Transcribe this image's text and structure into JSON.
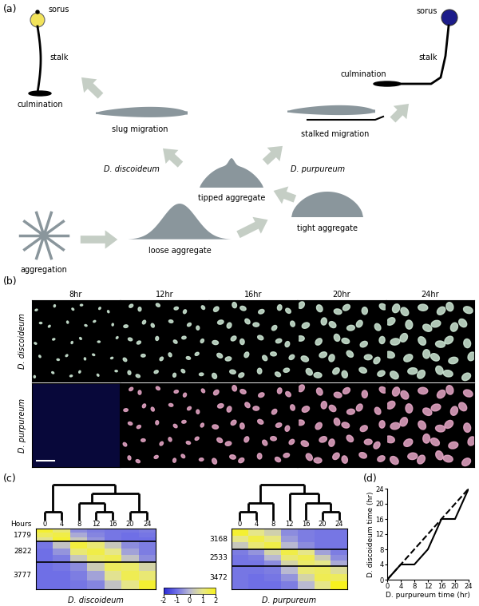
{
  "figure": {
    "panel_a": {
      "label": "(a)",
      "stages": {
        "aggregation": "aggregation",
        "loose": "loose aggregate",
        "tight": "tight aggregate",
        "tipped": "tipped aggregate"
      },
      "branches": [
        {
          "species": "D. discoideum",
          "migration": "slug migration",
          "culmination": "culmination",
          "sorus": "sorus",
          "stalk": "stalk",
          "color": "#f2e35a"
        },
        {
          "species": "D. purpureum",
          "migration": "stalked migration",
          "culmination": "culmination",
          "sorus": "sorus",
          "stalk": "stalk",
          "color": "#1c1c8a"
        }
      ]
    },
    "panel_b": {
      "label": "(b)",
      "columns": [
        "8hr",
        "12hr",
        "16hr",
        "20hr",
        "24hr"
      ],
      "rows": [
        "D. discoideum",
        "D. purpureum"
      ]
    },
    "panel_c": {
      "label": "(c)",
      "hours_label": "Hours",
      "colorbar": {
        "range": [
          -2,
          2
        ],
        "ticks": [
          -2,
          -1,
          0,
          1,
          2
        ]
      },
      "heatmaps": [
        {
          "title": "D. discoideum",
          "hours": [
            0,
            4,
            8,
            12,
            16,
            20,
            24
          ],
          "dendrogram": [
            [
              0,
              4
            ],
            [
              [
                8,
                [
                  12,
                  16
                ]
              ],
              [
                20,
                24
              ]
            ]
          ],
          "cluster_sizes": [
            1779,
            2822,
            3777
          ],
          "cells": [
            [
              [
                1.8,
                1.2,
                -0.6,
                -0.8,
                -0.9,
                -0.9,
                -0.8
              ],
              [
                1.4,
                1.6,
                -0.2,
                -0.7,
                -0.9,
                -1.0,
                -0.9
              ],
              [
                0.9,
                1.8,
                0.3,
                -0.5,
                -0.9,
                -1.0,
                -1.0
              ]
            ],
            [
              [
                -0.9,
                0.2,
                1.7,
                1.2,
                0.3,
                -0.6,
                -0.8
              ],
              [
                -1.0,
                -0.5,
                1.2,
                1.6,
                1.0,
                -0.3,
                -0.8
              ],
              [
                -1.0,
                -0.8,
                0.3,
                1.3,
                1.5,
                0.2,
                -0.6
              ]
            ],
            [
              [
                -1.0,
                -0.9,
                -0.6,
                0.4,
                1.4,
                1.3,
                0.6
              ],
              [
                -1.0,
                -1.0,
                -0.8,
                -0.3,
                0.9,
                1.5,
                1.2
              ],
              [
                -1.0,
                -1.0,
                -0.9,
                -0.7,
                0.2,
                1.0,
                1.8
              ]
            ]
          ]
        },
        {
          "title": "D. purpureum",
          "hours": [
            0,
            4,
            8,
            12,
            16,
            20,
            24
          ],
          "dendrogram": [
            [
              [
                0,
                4
              ],
              8
            ],
            [
              12,
              [
                16,
                [
                  20,
                  24
                ]
              ]
            ]
          ],
          "cluster_sizes": [
            3168,
            2533,
            3472
          ],
          "cells": [
            [
              [
                1.8,
                1.0,
                0.5,
                -0.6,
                -0.8,
                -0.9,
                -0.9
              ],
              [
                1.0,
                1.6,
                1.1,
                -0.4,
                -0.8,
                -0.9,
                -0.9
              ],
              [
                0.3,
                1.2,
                1.6,
                0.0,
                -0.6,
                -0.9,
                -0.9
              ]
            ],
            [
              [
                -0.8,
                -0.5,
                0.6,
                1.6,
                1.0,
                -0.3,
                -0.8
              ],
              [
                -0.9,
                -0.8,
                0.0,
                1.2,
                1.5,
                0.4,
                -0.6
              ],
              [
                -0.9,
                -0.9,
                -0.6,
                0.6,
                1.3,
                1.0,
                -0.2
              ]
            ],
            [
              [
                -0.9,
                -0.9,
                -0.8,
                0.0,
                1.2,
                1.4,
                0.8
              ],
              [
                -0.9,
                -1.0,
                -0.9,
                -0.5,
                0.6,
                1.5,
                1.4
              ],
              [
                -0.9,
                -1.0,
                -1.0,
                -0.8,
                0.0,
                1.0,
                2.0
              ]
            ]
          ]
        }
      ]
    },
    "panel_d": {
      "label": "(d)"
    }
  },
  "chart_data": {
    "type": "line",
    "xlabel": "D. purpureum time (hr)",
    "ylabel": "D. discoideum time (hr)",
    "xlim": [
      0,
      24
    ],
    "ylim": [
      0,
      24
    ],
    "xticks": [
      0,
      4,
      8,
      12,
      16,
      20,
      24
    ],
    "yticks": [
      0,
      4,
      8,
      12,
      16,
      20,
      24
    ],
    "series": [
      {
        "x": [
          0,
          4,
          8,
          12,
          16,
          20,
          24
        ],
        "values": [
          0,
          4,
          4,
          8,
          16,
          16,
          24
        ],
        "color": "#000000",
        "line_style": "solid"
      },
      {
        "x": [
          0,
          24
        ],
        "values": [
          0,
          24
        ],
        "color": "#000000",
        "line_style": "dashed"
      }
    ]
  }
}
